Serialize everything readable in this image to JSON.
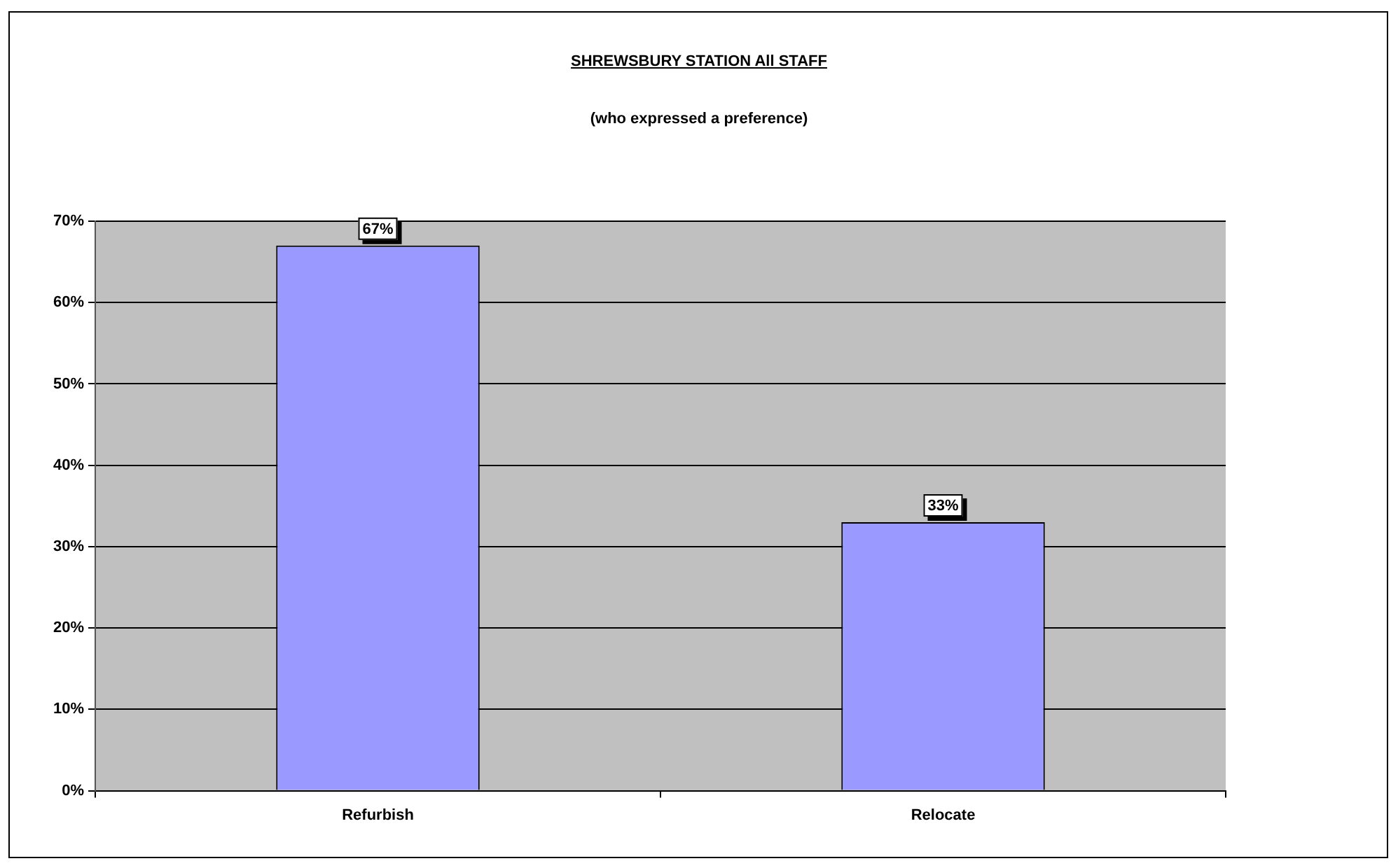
{
  "chart_data": {
    "type": "bar",
    "title": "SHREWSBURY STATION All STAFF",
    "subtitle": "(who expressed a preference)",
    "categories": [
      "Refurbish",
      "Relocate"
    ],
    "values": [
      67,
      33
    ],
    "color": "#9999ff",
    "value_labels": [
      "67%",
      "33%"
    ],
    "ylim": [
      0,
      70
    ],
    "yticks": [
      {
        "value": 0,
        "label": "0%"
      },
      {
        "value": 10,
        "label": "10%"
      },
      {
        "value": 20,
        "label": "20%"
      },
      {
        "value": 30,
        "label": "30%"
      },
      {
        "value": 40,
        "label": "40%"
      },
      {
        "value": 50,
        "label": "50%"
      },
      {
        "value": 60,
        "label": "60%"
      },
      {
        "value": 70,
        "label": "70%"
      }
    ],
    "grid": "y"
  }
}
